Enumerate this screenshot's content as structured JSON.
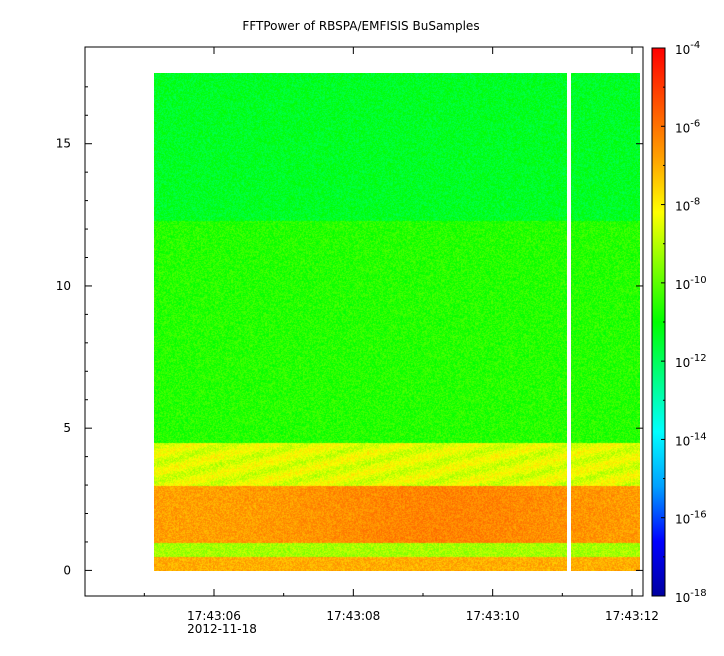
{
  "chart_data": {
    "type": "heatmap",
    "title": "FFTPower of RBSPA/EMFISIS  BuSamples",
    "xlabel": "",
    "ylabel": "",
    "x_tick_labels": [
      "17:43:06",
      "17:43:08",
      "17:43:10",
      "17:43:12"
    ],
    "x_date_label": "2012-11-18",
    "y_tick_labels": [
      "0",
      "5",
      "10",
      "15"
    ],
    "y_ticks": [
      0,
      5,
      10,
      15
    ],
    "ylim": [
      -0.9,
      18.4
    ],
    "data_y_range": [
      0,
      17.5
    ],
    "x_data_range": [
      "17:43:05.2",
      "17:43:12.0"
    ],
    "gap_at": "17:43:11.1",
    "colorbar": {
      "scale": "log",
      "range": [
        1e-18,
        0.0001
      ],
      "tick_labels": [
        {
          "base": "10",
          "exp": "-4"
        },
        {
          "base": "10",
          "exp": "-6"
        },
        {
          "base": "10",
          "exp": "-8"
        },
        {
          "base": "10",
          "exp": "-10"
        },
        {
          "base": "10",
          "exp": "-12"
        },
        {
          "base": "10",
          "exp": "-14"
        },
        {
          "base": "10",
          "exp": "-16"
        },
        {
          "base": "10",
          "exp": "-18"
        }
      ],
      "tick_exponents": [
        -4,
        -6,
        -8,
        -10,
        -12,
        -14,
        -16,
        -18
      ],
      "colors": [
        "#0000a0",
        "#0000ff",
        "#00a0ff",
        "#00ffff",
        "#00ff80",
        "#00ff00",
        "#80ff00",
        "#ffff00",
        "#ffa000",
        "#ff5000",
        "#ff0000"
      ]
    },
    "frequency_bands": [
      {
        "y_range": [
          12.3,
          17.5
        ],
        "log10_power": -11.4
      },
      {
        "y_range": [
          4.5,
          12.3
        ],
        "log10_power": -10.6
      },
      {
        "y_range": [
          3.0,
          4.5
        ],
        "log10_power": -8.5
      },
      {
        "y_range": [
          1.0,
          3.0
        ],
        "log10_power": -6.8
      },
      {
        "y_range": [
          0.5,
          1.0
        ],
        "log10_power": -9.2
      },
      {
        "y_range": [
          0.0,
          0.5
        ],
        "log10_power": -7.0
      }
    ]
  }
}
